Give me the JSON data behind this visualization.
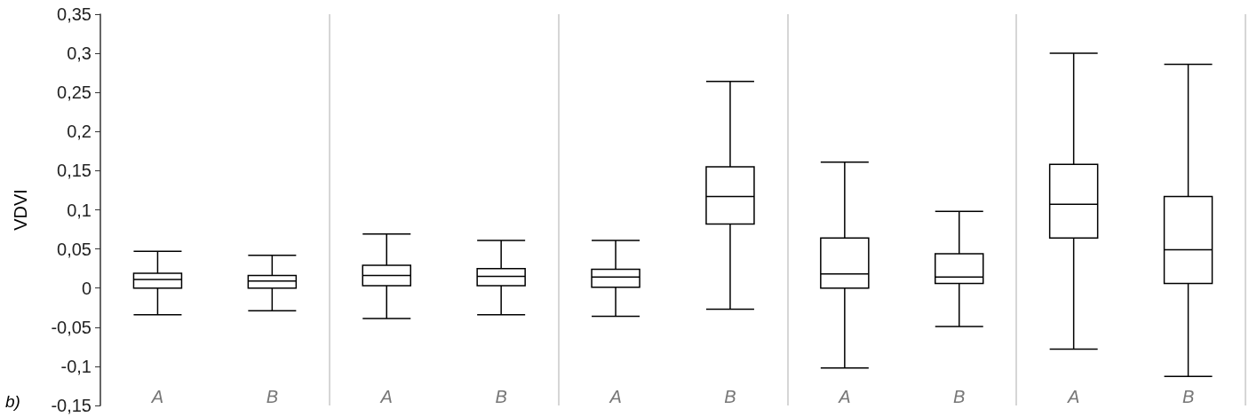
{
  "chart_data": {
    "type": "box",
    "ylabel": "VDVI",
    "annotations": [
      "b)"
    ],
    "categories": [
      "A",
      "B",
      "A",
      "B",
      "A",
      "B",
      "A",
      "B",
      "A",
      "B"
    ],
    "color": "#000000",
    "boxes": [
      {
        "low": -0.034,
        "q1": 0,
        "median": 0.011,
        "q3": 0.019,
        "high": 0.047
      },
      {
        "low": -0.029,
        "q1": 0,
        "median": 0.009,
        "q3": 0.016,
        "high": 0.042
      },
      {
        "low": -0.039,
        "q1": 0.003,
        "median": 0.016,
        "q3": 0.029,
        "high": 0.069
      },
      {
        "low": -0.034,
        "q1": 0.003,
        "median": 0.015,
        "q3": 0.025,
        "high": 0.061
      },
      {
        "low": -0.036,
        "q1": 0.001,
        "median": 0.014,
        "q3": 0.024,
        "high": 0.061
      },
      {
        "low": -0.027,
        "q1": 0.082,
        "median": 0.117,
        "q3": 0.155,
        "high": 0.264
      },
      {
        "low": -0.102,
        "q1": 0,
        "median": 0.018,
        "q3": 0.064,
        "high": 0.161
      },
      {
        "low": -0.049,
        "q1": 0.006,
        "median": 0.014,
        "q3": 0.044,
        "high": 0.098
      },
      {
        "low": -0.078,
        "q1": 0.064,
        "median": 0.107,
        "q3": 0.158,
        "high": 0.3
      },
      {
        "low": -0.113,
        "q1": 0.006,
        "median": 0.049,
        "q3": 0.117,
        "high": 0.286
      }
    ],
    "ylim": [
      -0.15,
      0.35
    ],
    "yticks": [
      {
        "value": -0.15,
        "label": "-0,15"
      },
      {
        "value": -0.1,
        "label": "-0,1"
      },
      {
        "value": -0.05,
        "label": "-0,05"
      },
      0,
      {
        "value": 0.05,
        "label": "0,05"
      },
      {
        "value": 0.1,
        "label": "0,1"
      },
      {
        "value": 0.15,
        "label": "0,15"
      },
      {
        "value": 0.2,
        "label": "0,2"
      },
      {
        "value": 0.25,
        "label": "0,25"
      },
      {
        "value": 0.3,
        "label": "0,3"
      },
      {
        "value": 0.35,
        "label": "0,35"
      }
    ],
    "grid": false
  }
}
